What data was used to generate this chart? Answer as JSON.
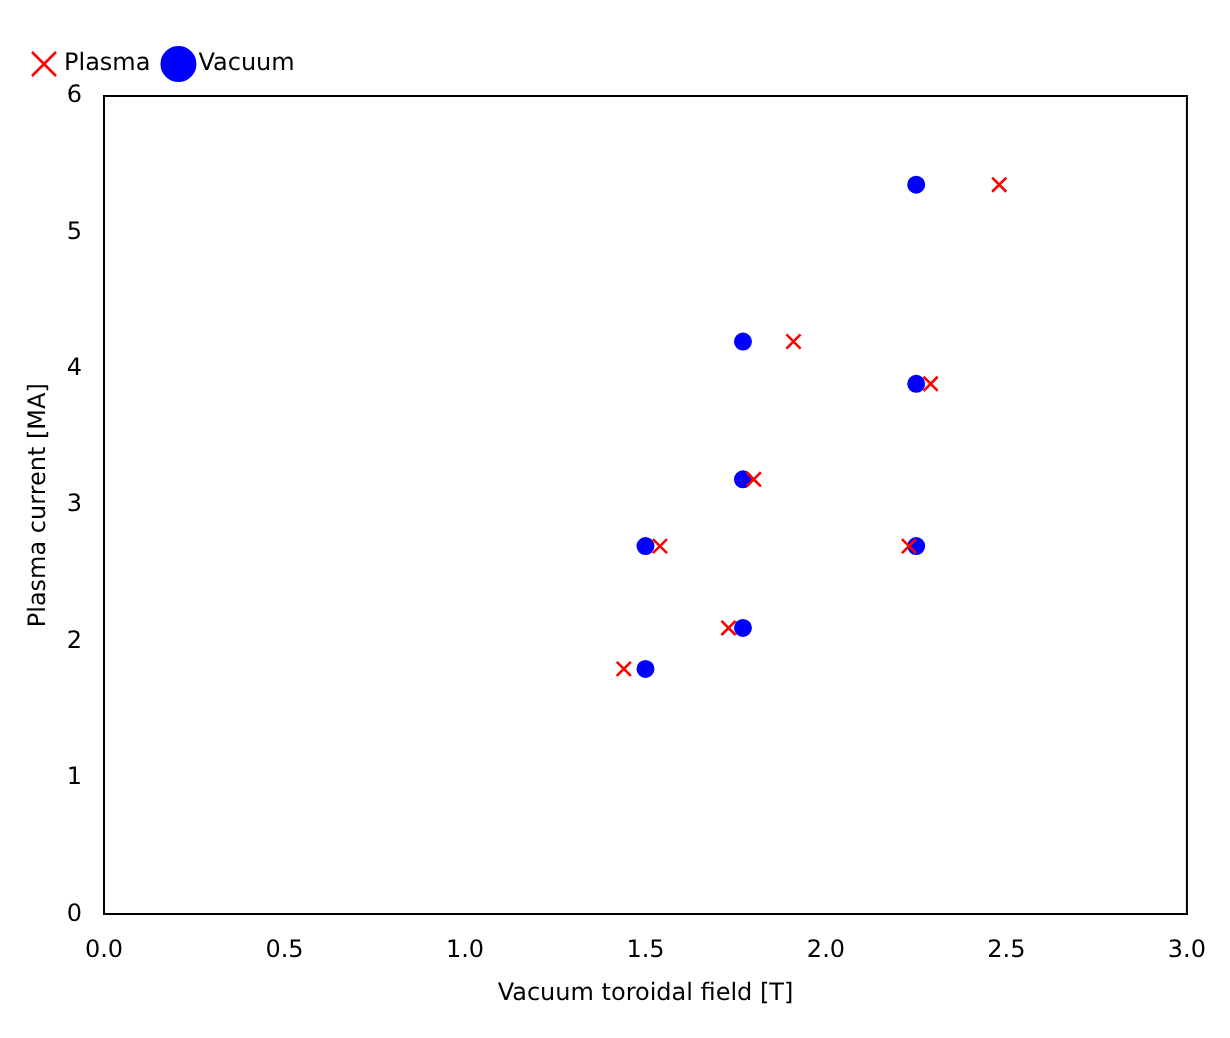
{
  "chart_data": {
    "type": "scatter",
    "xlabel": "Vacuum toroidal field [T]",
    "ylabel": "Plasma current [MA]",
    "xlim": [
      0,
      3
    ],
    "xticks": [
      {
        "value": 0,
        "label": "0.0"
      },
      {
        "value": 0.5,
        "label": "0.5"
      },
      {
        "value": 1,
        "label": "1.0"
      },
      {
        "value": 1.5,
        "label": "1.5"
      },
      {
        "value": 2,
        "label": "2.0"
      },
      {
        "value": 2.5,
        "label": "2.5"
      },
      {
        "value": 3,
        "label": "3.0"
      }
    ],
    "ylim": [
      0,
      6
    ],
    "yticks": [
      0,
      1,
      2,
      3,
      4,
      5,
      6
    ],
    "grid": false,
    "legend": "top left",
    "series": [
      {
        "name": "Vacuum",
        "color": "#0000ff",
        "marker": "circle",
        "x": [
          2.25,
          1.77,
          1.77,
          1.5,
          1.77,
          1.5,
          2.25,
          2.25
        ],
        "values": [
          5.35,
          4.2,
          3.19,
          2.7,
          2.1,
          1.8,
          3.89,
          2.7
        ]
      },
      {
        "name": "Plasma",
        "color": "#ff0000",
        "marker": "cross",
        "x": [
          2.48,
          1.91,
          2.29,
          1.8,
          1.54,
          2.23,
          1.73,
          1.44
        ],
        "values": [
          5.35,
          4.2,
          3.89,
          3.19,
          2.7,
          2.7,
          2.1,
          1.8
        ]
      }
    ]
  }
}
